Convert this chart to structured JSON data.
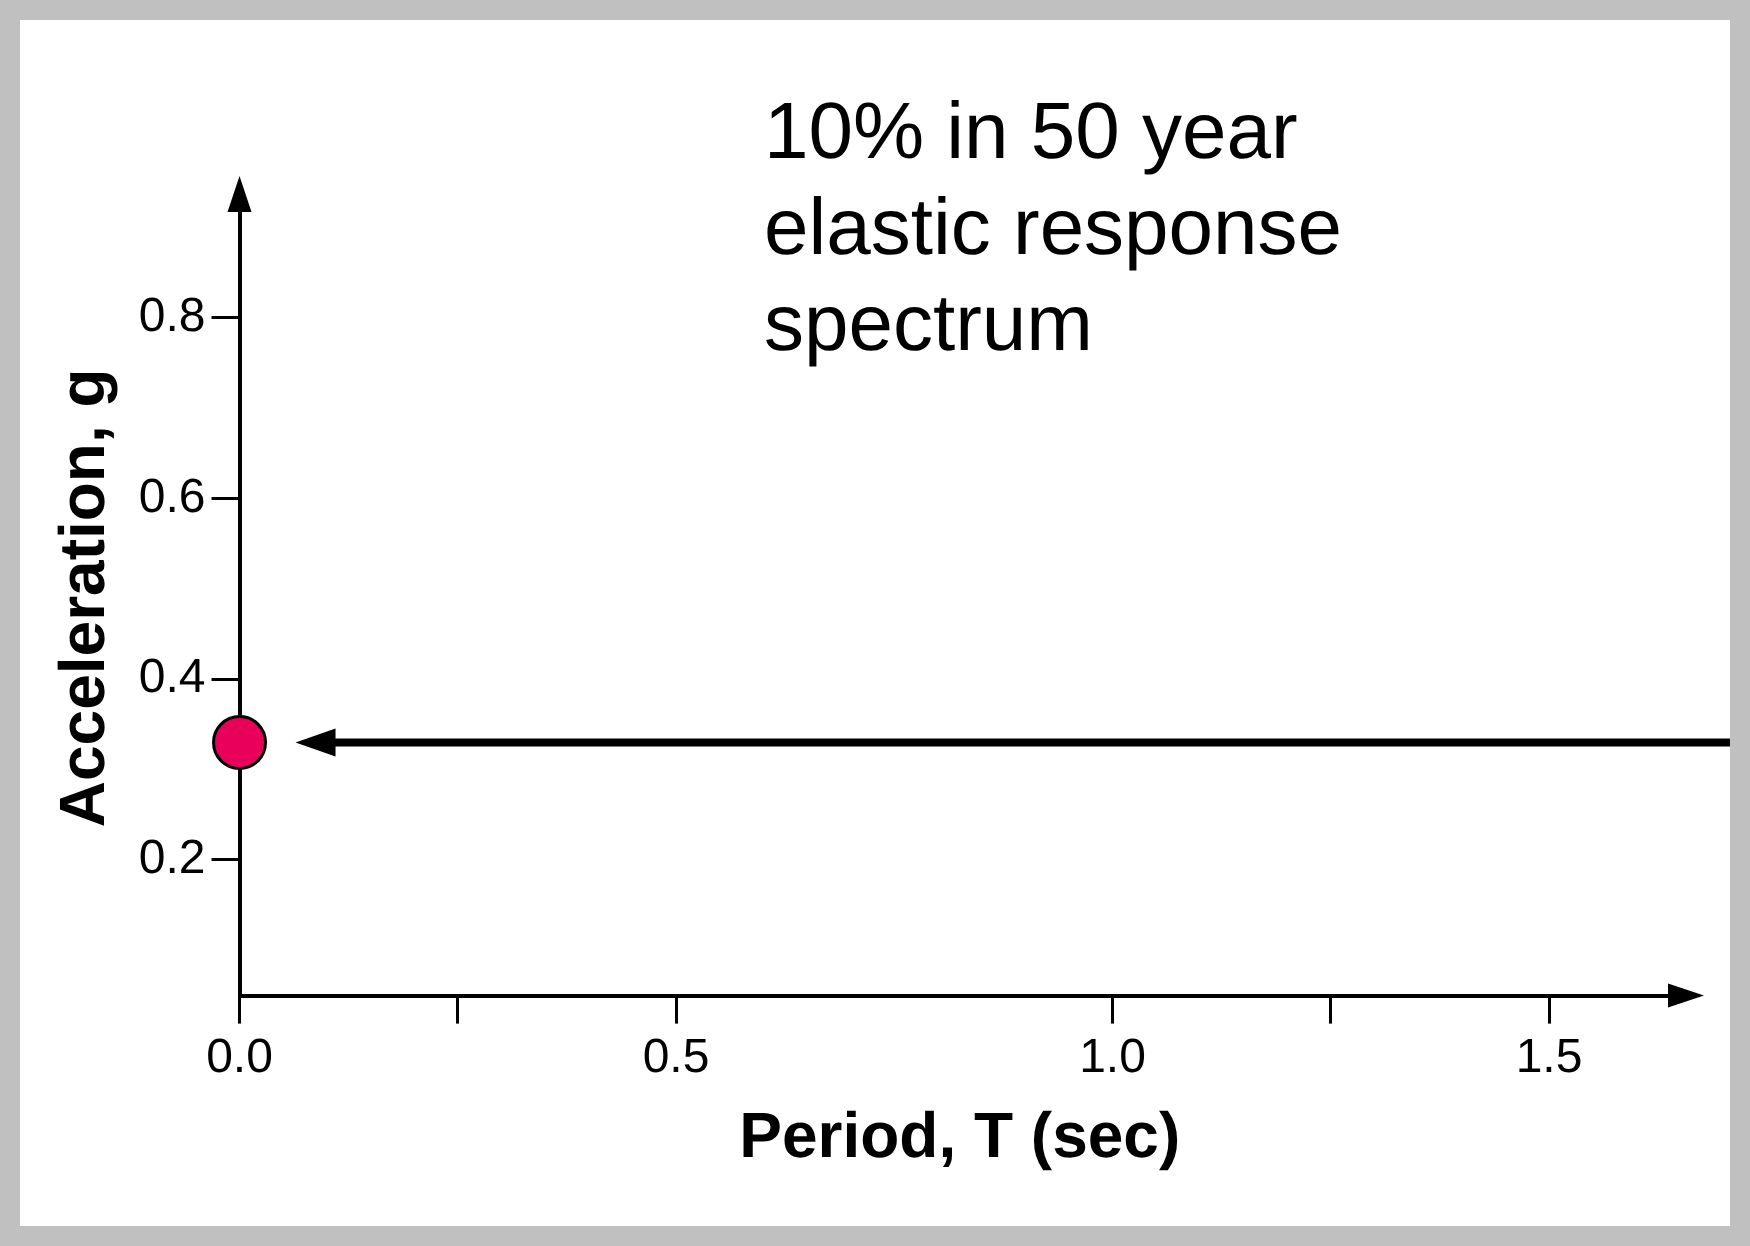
{
  "chart_data": {
    "type": "scatter",
    "xlabel": "Period, T (sec)",
    "ylabel": "Acceleration, g",
    "annotations": [
      "10% in 50 year elastic response spectrum"
    ],
    "series": [
      {
        "color": "#e8005a",
        "x": [
          0
        ],
        "values": [
          0.33
        ]
      }
    ],
    "xlim": [
      0,
      1.65
    ],
    "xticks": [
      {
        "value": 0,
        "label": "0.0"
      },
      {
        "value": 0.25,
        "label": null
      },
      0.5,
      {
        "value": 1,
        "label": "1.0"
      },
      {
        "value": 1.25,
        "label": null
      },
      {
        "value": 1.5,
        "label": "1.5"
      }
    ],
    "ylim": [
      0.05,
      0.93
    ],
    "yticks": [
      0.2,
      0.4,
      0.6,
      0.8
    ],
    "grid": false,
    "legend": false,
    "marker": "circle"
  }
}
